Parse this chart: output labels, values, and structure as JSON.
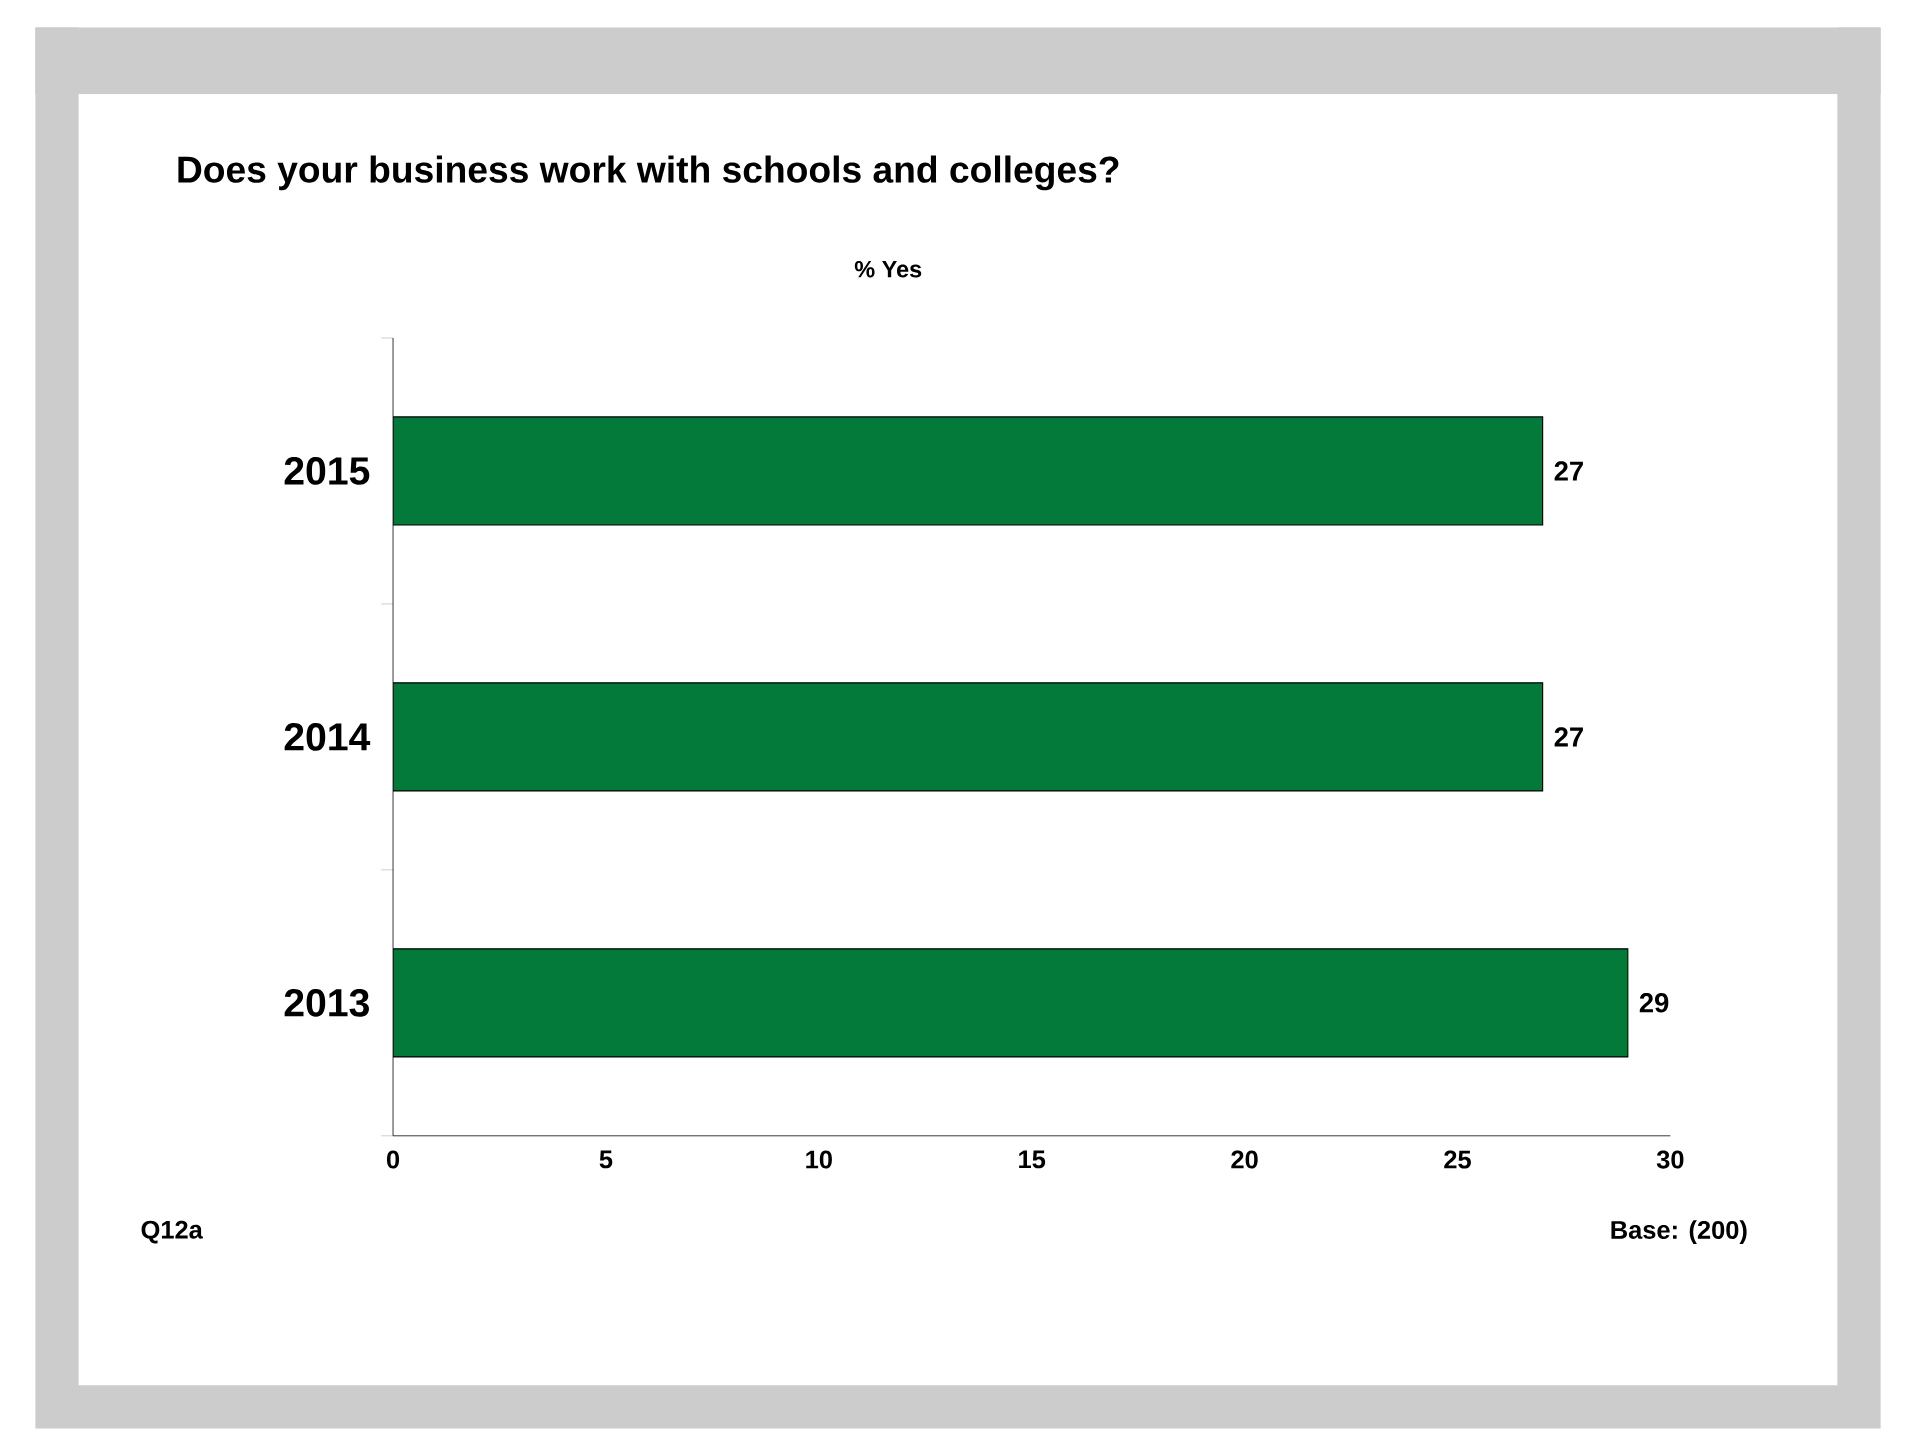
{
  "chart_data": {
    "type": "bar",
    "orientation": "horizontal",
    "title": "Does your business work with schools and colleges?",
    "subtitle": "% Yes",
    "categories": [
      "2015",
      "2014",
      "2013"
    ],
    "values": [
      27,
      27,
      29
    ],
    "color": "#047a3a",
    "xlim": [
      0,
      30
    ],
    "xticks": [
      0,
      5,
      10,
      15,
      20,
      25,
      30
    ],
    "grid": false,
    "data_labels": true,
    "annotations": [
      "Q12a",
      "Base: (200)"
    ]
  }
}
